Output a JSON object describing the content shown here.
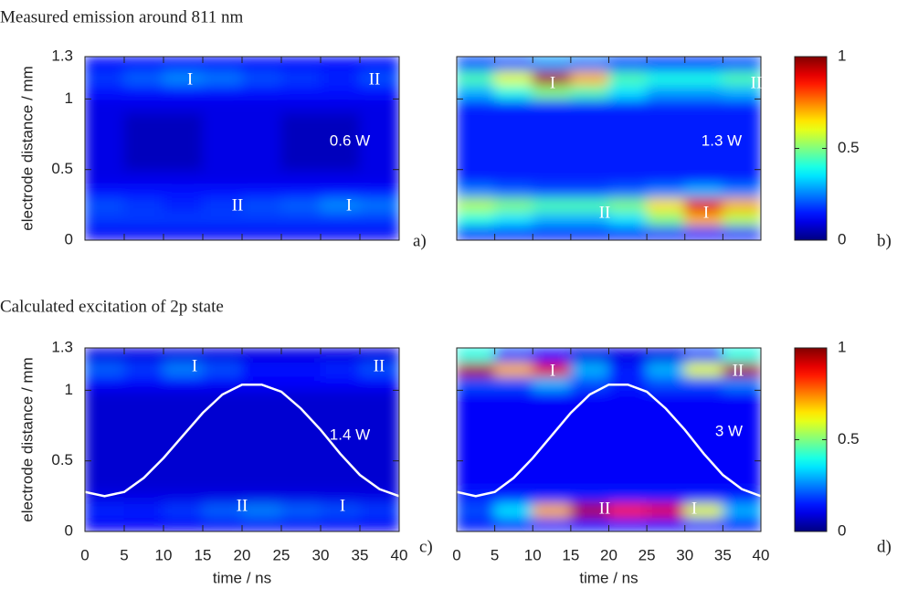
{
  "chart_data": [
    {
      "type": "heatmap",
      "title": "Measured emission around 811 nm",
      "panel_label": "a)",
      "ylabel": "electrode distance / mm",
      "colormap": "jet",
      "xlim": [
        0,
        40
      ],
      "ylim": [
        0,
        1.3
      ],
      "xticks": [
        0,
        5,
        10,
        15,
        20,
        25,
        30,
        35,
        40
      ],
      "yticks": [
        0,
        0.5,
        1,
        1.3
      ],
      "x_edges": [
        0,
        5,
        10,
        15,
        20,
        25,
        30,
        35,
        40
      ],
      "y_edges": [
        0,
        0.1,
        0.2,
        0.3,
        0.4,
        0.5,
        0.6,
        0.7,
        0.8,
        0.9,
        1.0,
        1.1,
        1.2,
        1.3
      ],
      "z": [
        [
          0.12,
          0.12,
          0.12,
          0.12,
          0.12,
          0.12,
          0.12,
          0.12
        ],
        [
          0.18,
          0.18,
          0.18,
          0.18,
          0.18,
          0.18,
          0.18,
          0.18
        ],
        [
          0.2,
          0.18,
          0.16,
          0.18,
          0.2,
          0.22,
          0.26,
          0.24
        ],
        [
          0.14,
          0.14,
          0.14,
          0.14,
          0.14,
          0.14,
          0.14,
          0.14
        ],
        [
          0.1,
          0.1,
          0.1,
          0.1,
          0.1,
          0.1,
          0.1,
          0.1
        ],
        [
          0.1,
          0.06,
          0.06,
          0.1,
          0.1,
          0.06,
          0.06,
          0.1
        ],
        [
          0.1,
          0.06,
          0.06,
          0.1,
          0.1,
          0.06,
          0.06,
          0.1
        ],
        [
          0.1,
          0.06,
          0.06,
          0.1,
          0.1,
          0.06,
          0.06,
          0.1
        ],
        [
          0.1,
          0.06,
          0.06,
          0.1,
          0.1,
          0.06,
          0.06,
          0.1
        ],
        [
          0.1,
          0.1,
          0.1,
          0.1,
          0.1,
          0.1,
          0.1,
          0.1
        ],
        [
          0.14,
          0.14,
          0.14,
          0.14,
          0.14,
          0.14,
          0.14,
          0.14
        ],
        [
          0.18,
          0.22,
          0.26,
          0.24,
          0.2,
          0.18,
          0.16,
          0.2
        ],
        [
          0.14,
          0.14,
          0.14,
          0.14,
          0.14,
          0.14,
          0.14,
          0.14
        ]
      ],
      "annotations": [
        "I",
        "II",
        "0.6 W",
        "II",
        "I"
      ]
    },
    {
      "type": "heatmap",
      "panel_label": "b)",
      "colormap": "jet",
      "xlim": [
        0,
        40
      ],
      "ylim": [
        0,
        1.3
      ],
      "xticks": [
        0,
        5,
        10,
        15,
        20,
        25,
        30,
        35,
        40
      ],
      "yticks": [
        0,
        0.5,
        1,
        1.3
      ],
      "x_edges": [
        0,
        5,
        10,
        15,
        20,
        25,
        30,
        35,
        40
      ],
      "y_edges": [
        0,
        0.1,
        0.2,
        0.3,
        0.4,
        0.5,
        0.6,
        0.7,
        0.8,
        0.9,
        1.0,
        1.1,
        1.2,
        1.3
      ],
      "z": [
        [
          0.15,
          0.15,
          0.15,
          0.15,
          0.15,
          0.15,
          0.15,
          0.15
        ],
        [
          0.4,
          0.35,
          0.3,
          0.3,
          0.35,
          0.5,
          0.7,
          0.55
        ],
        [
          0.55,
          0.5,
          0.45,
          0.45,
          0.5,
          0.65,
          0.9,
          0.7
        ],
        [
          0.25,
          0.22,
          0.2,
          0.2,
          0.22,
          0.25,
          0.3,
          0.25
        ],
        [
          0.15,
          0.15,
          0.15,
          0.15,
          0.15,
          0.15,
          0.15,
          0.15
        ],
        [
          0.15,
          0.15,
          0.15,
          0.15,
          0.15,
          0.15,
          0.15,
          0.15
        ],
        [
          0.15,
          0.15,
          0.15,
          0.15,
          0.15,
          0.15,
          0.15,
          0.15
        ],
        [
          0.15,
          0.15,
          0.15,
          0.15,
          0.15,
          0.15,
          0.15,
          0.15
        ],
        [
          0.15,
          0.15,
          0.15,
          0.15,
          0.15,
          0.15,
          0.15,
          0.15
        ],
        [
          0.16,
          0.16,
          0.16,
          0.16,
          0.16,
          0.16,
          0.16,
          0.16
        ],
        [
          0.3,
          0.4,
          0.5,
          0.45,
          0.35,
          0.28,
          0.28,
          0.3
        ],
        [
          0.45,
          0.6,
          0.95,
          0.7,
          0.45,
          0.4,
          0.4,
          0.45
        ],
        [
          0.2,
          0.22,
          0.28,
          0.25,
          0.2,
          0.18,
          0.18,
          0.2
        ]
      ],
      "annotations": [
        "I",
        "II",
        "1.3 W",
        "II",
        "I"
      ]
    },
    {
      "type": "colorbar",
      "colormap": "jet",
      "ylim": [
        0,
        1
      ],
      "yticks": [
        0,
        0.5,
        1
      ]
    },
    {
      "type": "heatmap",
      "title": "Calculated excitation of 2p state",
      "panel_label": "c)",
      "ylabel": "electrode distance / mm",
      "xlabel": "time / ns",
      "colormap": "jet",
      "xlim": [
        0,
        40
      ],
      "ylim": [
        0,
        1.3
      ],
      "xticks": [
        0,
        5,
        10,
        15,
        20,
        25,
        30,
        35,
        40
      ],
      "yticks": [
        0,
        0.5,
        1,
        1.3
      ],
      "x_edges": [
        0,
        5,
        10,
        15,
        20,
        25,
        30,
        35,
        40
      ],
      "y_edges": [
        0,
        0.1,
        0.2,
        0.3,
        0.4,
        0.5,
        0.6,
        0.7,
        0.8,
        0.9,
        1.0,
        1.1,
        1.2,
        1.3
      ],
      "z": [
        [
          0.12,
          0.12,
          0.12,
          0.12,
          0.12,
          0.12,
          0.12,
          0.12
        ],
        [
          0.16,
          0.15,
          0.18,
          0.22,
          0.25,
          0.22,
          0.2,
          0.18
        ],
        [
          0.1,
          0.1,
          0.1,
          0.1,
          0.1,
          0.1,
          0.1,
          0.1
        ],
        [
          0.08,
          0.08,
          0.08,
          0.08,
          0.08,
          0.08,
          0.08,
          0.08
        ],
        [
          0.08,
          0.08,
          0.08,
          0.08,
          0.08,
          0.08,
          0.08,
          0.08
        ],
        [
          0.08,
          0.08,
          0.08,
          0.08,
          0.08,
          0.08,
          0.08,
          0.08
        ],
        [
          0.08,
          0.08,
          0.08,
          0.08,
          0.08,
          0.08,
          0.08,
          0.08
        ],
        [
          0.08,
          0.08,
          0.08,
          0.08,
          0.08,
          0.08,
          0.08,
          0.08
        ],
        [
          0.08,
          0.08,
          0.08,
          0.08,
          0.08,
          0.08,
          0.08,
          0.08
        ],
        [
          0.08,
          0.08,
          0.08,
          0.08,
          0.08,
          0.08,
          0.08,
          0.08
        ],
        [
          0.12,
          0.12,
          0.12,
          0.12,
          0.12,
          0.12,
          0.12,
          0.12
        ],
        [
          0.22,
          0.18,
          0.25,
          0.2,
          0.14,
          0.14,
          0.16,
          0.2
        ],
        [
          0.1,
          0.1,
          0.1,
          0.1,
          0.1,
          0.1,
          0.1,
          0.1
        ]
      ],
      "curve": {
        "color": "#ffffff",
        "x": [
          0,
          2.5,
          5,
          7.5,
          10,
          12.5,
          15,
          17.5,
          20,
          22.5,
          25,
          27.5,
          30,
          32.5,
          35,
          37.5,
          40
        ],
        "values": [
          0.28,
          0.25,
          0.28,
          0.38,
          0.52,
          0.68,
          0.84,
          0.97,
          1.04,
          1.04,
          0.99,
          0.87,
          0.72,
          0.55,
          0.4,
          0.3,
          0.25
        ]
      },
      "annotations": [
        "I",
        "II",
        "1.4 W",
        "II",
        "I"
      ]
    },
    {
      "type": "heatmap",
      "panel_label": "d)",
      "xlabel": "time / ns",
      "colormap": "jet",
      "xlim": [
        0,
        40
      ],
      "ylim": [
        0,
        1.3
      ],
      "xticks": [
        0,
        5,
        10,
        15,
        20,
        25,
        30,
        35,
        40
      ],
      "yticks": [
        0,
        0.5,
        1,
        1.3
      ],
      "x_edges": [
        0,
        5,
        10,
        15,
        20,
        25,
        30,
        35,
        40
      ],
      "y_edges": [
        0,
        0.1,
        0.2,
        0.3,
        0.4,
        0.5,
        0.6,
        0.7,
        0.8,
        0.9,
        1.0,
        1.1,
        1.2,
        1.3
      ],
      "z": [
        [
          0.15,
          0.15,
          0.15,
          0.15,
          0.15,
          0.15,
          0.15,
          0.15
        ],
        [
          0.2,
          0.35,
          0.7,
          0.95,
          0.85,
          0.9,
          0.6,
          0.3
        ],
        [
          0.15,
          0.15,
          0.15,
          0.15,
          0.15,
          0.15,
          0.15,
          0.15
        ],
        [
          0.12,
          0.12,
          0.12,
          0.12,
          0.12,
          0.12,
          0.12,
          0.12
        ],
        [
          0.12,
          0.12,
          0.12,
          0.12,
          0.12,
          0.12,
          0.12,
          0.12
        ],
        [
          0.12,
          0.12,
          0.12,
          0.12,
          0.12,
          0.12,
          0.12,
          0.12
        ],
        [
          0.12,
          0.12,
          0.12,
          0.12,
          0.12,
          0.12,
          0.12,
          0.12
        ],
        [
          0.12,
          0.12,
          0.12,
          0.12,
          0.12,
          0.12,
          0.12,
          0.12
        ],
        [
          0.12,
          0.12,
          0.12,
          0.12,
          0.12,
          0.12,
          0.12,
          0.12
        ],
        [
          0.12,
          0.12,
          0.12,
          0.12,
          0.12,
          0.12,
          0.12,
          0.12
        ],
        [
          0.2,
          0.2,
          0.3,
          0.2,
          0.15,
          0.2,
          0.2,
          0.25
        ],
        [
          0.95,
          0.7,
          0.9,
          0.3,
          0.15,
          0.3,
          0.6,
          0.95
        ],
        [
          0.4,
          0.2,
          0.15,
          0.1,
          0.1,
          0.1,
          0.2,
          0.4
        ]
      ],
      "curve": {
        "color": "#ffffff",
        "x": [
          0,
          2.5,
          5,
          7.5,
          10,
          12.5,
          15,
          17.5,
          20,
          22.5,
          25,
          27.5,
          30,
          32.5,
          35,
          37.5,
          40
        ],
        "values": [
          0.28,
          0.25,
          0.28,
          0.38,
          0.52,
          0.68,
          0.84,
          0.97,
          1.04,
          1.04,
          0.99,
          0.87,
          0.72,
          0.55,
          0.4,
          0.3,
          0.25
        ]
      },
      "annotations": [
        "I",
        "II",
        "3 W",
        "II",
        "I"
      ]
    },
    {
      "type": "colorbar",
      "colormap": "jet",
      "ylim": [
        0,
        1
      ],
      "yticks": [
        0,
        0.5,
        1
      ]
    }
  ]
}
